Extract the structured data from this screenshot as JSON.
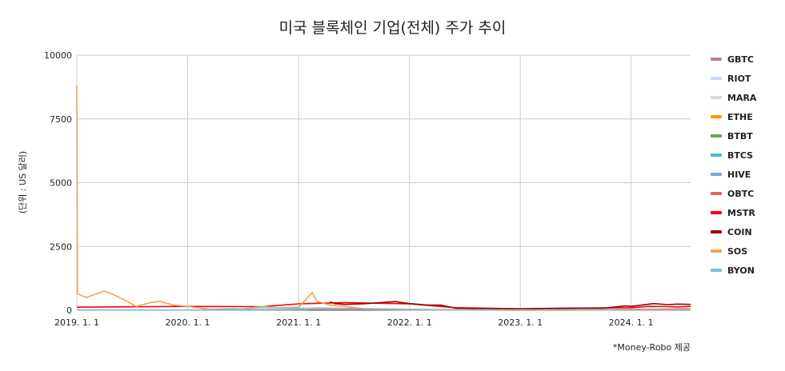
{
  "chart_data": {
    "type": "line",
    "title": "미국 블록체인 기업(전체) 주가 추이",
    "ylabel": "(단위 : US 달러)",
    "xlabel": "",
    "ylim": [
      0,
      10000
    ],
    "xlim": [
      "2019-01-01",
      "2024-07-15"
    ],
    "y_ticks": [
      "0",
      "2500",
      "5000",
      "7500",
      "10000"
    ],
    "x_ticks": [
      {
        "date": "2019-01-01",
        "label": "2019. 1. 1"
      },
      {
        "date": "2020-01-01",
        "label": "2020. 1. 1"
      },
      {
        "date": "2021-01-01",
        "label": "2021. 1. 1"
      },
      {
        "date": "2022-01-01",
        "label": "2022. 1. 1"
      },
      {
        "date": "2023-01-01",
        "label": "2023. 1. 1"
      },
      {
        "date": "2024-01-01",
        "label": "2024. 1. 1"
      }
    ],
    "grid": true,
    "legend_position": "right",
    "series": [
      {
        "name": "GBTC",
        "color": "#c27ba0",
        "points": [
          [
            "2019-01-01",
            5
          ],
          [
            "2020-01-01",
            10
          ],
          [
            "2021-01-01",
            40
          ],
          [
            "2021-03-01",
            45
          ],
          [
            "2022-01-01",
            30
          ],
          [
            "2023-01-01",
            10
          ],
          [
            "2024-01-01",
            40
          ],
          [
            "2024-07-15",
            50
          ]
        ]
      },
      {
        "name": "RIOT",
        "color": "#c9daf8",
        "points": [
          [
            "2019-01-01",
            2
          ],
          [
            "2020-01-01",
            2
          ],
          [
            "2021-01-01",
            20
          ],
          [
            "2021-03-01",
            60
          ],
          [
            "2022-01-01",
            20
          ],
          [
            "2023-01-01",
            5
          ],
          [
            "2024-01-01",
            15
          ],
          [
            "2024-07-15",
            10
          ]
        ]
      },
      {
        "name": "MARA",
        "color": "#d9d9e6",
        "points": [
          [
            "2019-01-01",
            1
          ],
          [
            "2020-01-01",
            1
          ],
          [
            "2021-01-01",
            20
          ],
          [
            "2021-03-01",
            50
          ],
          [
            "2022-01-01",
            30
          ],
          [
            "2023-01-01",
            5
          ],
          [
            "2024-01-01",
            20
          ],
          [
            "2024-07-15",
            20
          ]
        ]
      },
      {
        "name": "ETHE",
        "color": "#ff9900",
        "points": [
          [
            "2019-01-01",
            2
          ],
          [
            "2020-01-01",
            3
          ],
          [
            "2021-01-01",
            20
          ],
          [
            "2021-06-01",
            30
          ],
          [
            "2022-01-01",
            25
          ],
          [
            "2023-01-01",
            6
          ],
          [
            "2024-01-01",
            15
          ],
          [
            "2024-07-15",
            25
          ]
        ]
      },
      {
        "name": "BTBT",
        "color": "#6aa84f",
        "points": [
          [
            "2019-01-01",
            5
          ],
          [
            "2020-01-01",
            3
          ],
          [
            "2021-01-01",
            10
          ],
          [
            "2021-03-01",
            25
          ],
          [
            "2022-01-01",
            8
          ],
          [
            "2023-01-01",
            1
          ],
          [
            "2024-01-01",
            3
          ],
          [
            "2024-07-15",
            3
          ]
        ]
      },
      {
        "name": "BTCS",
        "color": "#46bdc6",
        "points": [
          [
            "2019-01-01",
            5
          ],
          [
            "2020-01-01",
            3
          ],
          [
            "2021-01-01",
            20
          ],
          [
            "2021-03-01",
            30
          ],
          [
            "2022-01-01",
            5
          ],
          [
            "2023-01-01",
            1
          ],
          [
            "2024-01-01",
            2
          ],
          [
            "2024-07-15",
            2
          ]
        ]
      },
      {
        "name": "HIVE",
        "color": "#6fa8dc",
        "points": [
          [
            "2019-01-01",
            3
          ],
          [
            "2020-01-01",
            2
          ],
          [
            "2021-01-01",
            15
          ],
          [
            "2021-03-01",
            25
          ],
          [
            "2022-01-01",
            15
          ],
          [
            "2023-01-01",
            3
          ],
          [
            "2024-01-01",
            4
          ],
          [
            "2024-07-15",
            3
          ]
        ]
      },
      {
        "name": "OBTC",
        "color": "#e06666",
        "points": [
          [
            "2021-02-01",
            40
          ],
          [
            "2021-06-01",
            35
          ],
          [
            "2022-01-01",
            30
          ],
          [
            "2023-01-01",
            10
          ],
          [
            "2024-01-01",
            35
          ],
          [
            "2024-07-15",
            55
          ]
        ]
      },
      {
        "name": "MSTR",
        "color": "#ff0000",
        "points": [
          [
            "2019-01-01",
            120
          ],
          [
            "2020-01-01",
            150
          ],
          [
            "2020-09-01",
            140
          ],
          [
            "2021-01-01",
            250
          ],
          [
            "2021-06-01",
            300
          ],
          [
            "2022-01-01",
            250
          ],
          [
            "2022-06-01",
            100
          ],
          [
            "2023-01-01",
            60
          ],
          [
            "2023-06-01",
            80
          ],
          [
            "2024-01-01",
            100
          ],
          [
            "2024-03-01",
            150
          ],
          [
            "2024-05-01",
            140
          ],
          [
            "2024-06-01",
            130
          ],
          [
            "2024-07-15",
            150
          ]
        ]
      },
      {
        "name": "COIN",
        "color": "#990000",
        "points": [
          [
            "2021-04-14",
            330
          ],
          [
            "2021-05-01",
            260
          ],
          [
            "2021-06-01",
            230
          ],
          [
            "2021-08-01",
            250
          ],
          [
            "2021-11-15",
            340
          ],
          [
            "2022-01-01",
            260
          ],
          [
            "2022-03-01",
            200
          ],
          [
            "2022-04-15",
            200
          ],
          [
            "2022-06-01",
            80
          ],
          [
            "2022-09-01",
            70
          ],
          [
            "2023-01-01",
            40
          ],
          [
            "2023-03-01",
            65
          ],
          [
            "2023-07-01",
            80
          ],
          [
            "2023-10-01",
            80
          ],
          [
            "2023-12-15",
            170
          ],
          [
            "2024-01-01",
            150
          ],
          [
            "2024-03-15",
            260
          ],
          [
            "2024-05-01",
            220
          ],
          [
            "2024-06-01",
            240
          ],
          [
            "2024-07-15",
            230
          ]
        ]
      },
      {
        "name": "SOS",
        "color": "#f6a154",
        "points": [
          [
            "2019-01-01",
            8800
          ],
          [
            "2019-01-03",
            650
          ],
          [
            "2019-02-01",
            500
          ],
          [
            "2019-04-01",
            750
          ],
          [
            "2019-05-01",
            620
          ],
          [
            "2019-06-15",
            350
          ],
          [
            "2019-07-15",
            150
          ],
          [
            "2019-09-01",
            300
          ],
          [
            "2019-10-01",
            350
          ],
          [
            "2019-11-15",
            200
          ],
          [
            "2020-01-01",
            150
          ],
          [
            "2020-02-01",
            100
          ],
          [
            "2020-03-15",
            40
          ],
          [
            "2020-06-01",
            60
          ],
          [
            "2020-07-01",
            40
          ],
          [
            "2020-09-01",
            150
          ],
          [
            "2020-11-01",
            100
          ],
          [
            "2021-01-01",
            120
          ],
          [
            "2021-02-15",
            700
          ],
          [
            "2021-03-01",
            350
          ],
          [
            "2021-04-15",
            200
          ],
          [
            "2021-06-01",
            150
          ],
          [
            "2021-08-01",
            60
          ],
          [
            "2021-11-01",
            50
          ],
          [
            "2022-01-01",
            30
          ],
          [
            "2022-06-01",
            15
          ],
          [
            "2023-01-01",
            5
          ],
          [
            "2024-01-01",
            3
          ],
          [
            "2024-07-15",
            3
          ]
        ]
      },
      {
        "name": "BYON",
        "color": "#76c5d9",
        "points": [
          [
            "2019-01-01",
            20
          ],
          [
            "2019-06-01",
            15
          ],
          [
            "2020-01-01",
            10
          ],
          [
            "2020-07-01",
            60
          ],
          [
            "2020-09-01",
            100
          ],
          [
            "2021-01-01",
            80
          ],
          [
            "2021-03-01",
            100
          ],
          [
            "2022-01-01",
            40
          ],
          [
            "2023-01-01",
            20
          ],
          [
            "2024-01-01",
            25
          ],
          [
            "2024-07-15",
            15
          ]
        ]
      }
    ]
  },
  "source_note": "*Money-Robo 제공"
}
